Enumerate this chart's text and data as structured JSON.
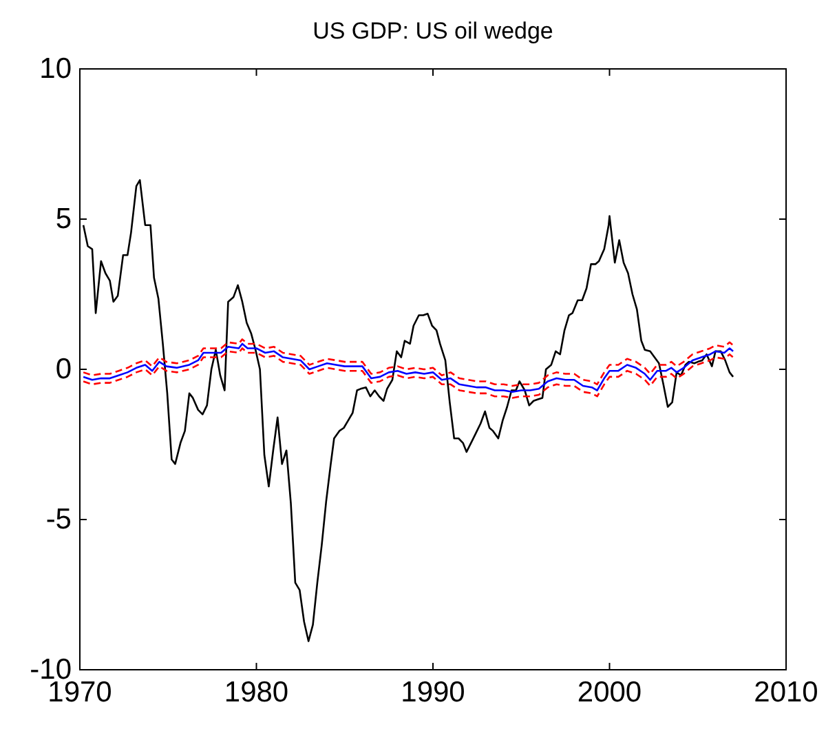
{
  "chart_data": {
    "type": "line",
    "title": "US GDP: US oil wedge",
    "xlim": [
      1970,
      2010
    ],
    "xticks": [
      1970,
      1980,
      1990,
      2000,
      2010
    ],
    "ylim": [
      -10,
      10
    ],
    "yticks": [
      -10,
      -5,
      0,
      5,
      10
    ],
    "marker": "none",
    "series": [
      {
        "color": "#000000",
        "line_style": "solid",
        "x": [
          1970.2,
          1970.45,
          1970.7,
          1970.9,
          1971.2,
          1971.45,
          1971.7,
          1971.9,
          1972.15,
          1972.45,
          1972.7,
          1972.9,
          1973.2,
          1973.4,
          1973.7,
          1974.0,
          1974.2,
          1974.45,
          1974.7,
          1974.95,
          1975.2,
          1975.4,
          1975.7,
          1975.95,
          1976.2,
          1976.4,
          1976.7,
          1976.95,
          1977.2,
          1977.45,
          1977.7,
          1977.95,
          1978.2,
          1978.4,
          1978.7,
          1978.95,
          1979.2,
          1979.45,
          1979.7,
          1979.95,
          1980.2,
          1980.45,
          1980.7,
          1980.95,
          1981.2,
          1981.45,
          1981.7,
          1981.95,
          1982.2,
          1982.45,
          1982.7,
          1982.95,
          1983.2,
          1983.45,
          1983.7,
          1983.95,
          1984.2,
          1984.4,
          1984.7,
          1984.95,
          1985.2,
          1985.45,
          1985.7,
          1985.9,
          1986.2,
          1986.45,
          1986.7,
          1986.95,
          1987.2,
          1987.4,
          1987.7,
          1987.95,
          1988.2,
          1988.4,
          1988.7,
          1988.9,
          1989.2,
          1989.45,
          1989.7,
          1989.95,
          1990.2,
          1990.4,
          1990.7,
          1990.95,
          1991.2,
          1991.45,
          1991.7,
          1991.9,
          1992.2,
          1992.45,
          1992.7,
          1992.95,
          1993.2,
          1993.4,
          1993.7,
          1993.95,
          1994.2,
          1994.45,
          1994.7,
          1994.9,
          1995.2,
          1995.45,
          1995.7,
          1995.95,
          1996.2,
          1996.4,
          1996.7,
          1996.95,
          1997.2,
          1997.45,
          1997.7,
          1997.9,
          1998.2,
          1998.45,
          1998.7,
          1998.95,
          1999.2,
          1999.4,
          1999.7,
          1999.95,
          2000.0,
          2000.3,
          2000.55,
          2000.8,
          2001.05,
          2001.3,
          2001.55,
          2001.8,
          2002.0,
          2002.3,
          2002.55,
          2002.8,
          2003.05,
          2003.3,
          2003.55,
          2003.8,
          2004.05,
          2004.3,
          2004.5,
          2004.8,
          2005.0,
          2005.25,
          2005.5,
          2005.8,
          2006.0,
          2006.3,
          2006.55,
          2006.8,
          2007.0
        ],
        "values": [
          4.8,
          4.1,
          4.0,
          1.87,
          3.6,
          3.2,
          2.95,
          2.25,
          2.45,
          3.8,
          3.8,
          4.55,
          6.1,
          6.3,
          4.8,
          4.8,
          3.05,
          2.35,
          0.85,
          -0.8,
          -3.0,
          -3.15,
          -2.45,
          -2.05,
          -0.8,
          -0.95,
          -1.35,
          -1.5,
          -1.2,
          0,
          0.65,
          -0.2,
          -0.7,
          2.25,
          2.4,
          2.8,
          2.25,
          1.55,
          1.2,
          0.65,
          0,
          -2.85,
          -3.9,
          -2.7,
          -1.6,
          -3.15,
          -2.7,
          -4.45,
          -7.1,
          -7.35,
          -8.4,
          -9.05,
          -8.5,
          -7.1,
          -5.85,
          -4.4,
          -3.2,
          -2.3,
          -2.05,
          -1.95,
          -1.7,
          -1.45,
          -0.7,
          -0.65,
          -0.6,
          -0.9,
          -0.7,
          -0.9,
          -1.05,
          -0.65,
          -0.35,
          0.6,
          0.4,
          0.95,
          0.85,
          1.45,
          1.8,
          1.8,
          1.85,
          1.45,
          1.3,
          0.85,
          0.3,
          -1.1,
          -2.3,
          -2.3,
          -2.45,
          -2.75,
          -2.4,
          -2.1,
          -1.8,
          -1.4,
          -1.95,
          -2.05,
          -2.3,
          -1.7,
          -1.25,
          -0.7,
          -0.7,
          -0.4,
          -0.7,
          -1.2,
          -1.05,
          -1.0,
          -0.95,
          0,
          0.15,
          0.6,
          0.5,
          1.3,
          1.8,
          1.87,
          2.3,
          2.3,
          2.7,
          3.5,
          3.5,
          3.6,
          4.0,
          4.8,
          5.1,
          3.55,
          4.3,
          3.55,
          3.2,
          2.5,
          2.0,
          0.95,
          0.65,
          0.6,
          0.4,
          0.2,
          -0.5,
          -1.25,
          -1.1,
          -0.1,
          -0.2,
          0.15,
          0.25,
          0.2,
          0.25,
          0.3,
          0.5,
          0.1,
          0.6,
          0.6,
          0.3,
          -0.1,
          -0.25
        ]
      },
      {
        "color": "#0000ff",
        "line_style": "solid",
        "x": [
          1970.2,
          1970.7,
          1971.2,
          1971.7,
          1972.2,
          1972.7,
          1973.2,
          1973.7,
          1974.1,
          1974.5,
          1974.9,
          1975.5,
          1976.2,
          1976.7,
          1977.0,
          1977.7,
          1978.0,
          1978.4,
          1979.0,
          1979.2,
          1979.5,
          1980.0,
          1980.5,
          1981.0,
          1981.5,
          1982.0,
          1982.5,
          1983.0,
          1983.5,
          1984.0,
          1984.5,
          1985.0,
          1985.5,
          1986.0,
          1986.5,
          1987.0,
          1987.5,
          1988.0,
          1988.5,
          1989.0,
          1989.5,
          1990.0,
          1990.5,
          1991.0,
          1991.5,
          1992.0,
          1992.5,
          1993.0,
          1993.5,
          1994.0,
          1994.5,
          1995.0,
          1995.5,
          1996.0,
          1996.5,
          1997.0,
          1997.5,
          1998.0,
          1998.5,
          1999.0,
          1999.3,
          1999.7,
          2000.0,
          2000.5,
          2001.0,
          2001.5,
          2002.0,
          2002.3,
          2002.7,
          2003.2,
          2003.5,
          2003.8,
          2004.2,
          2004.7,
          2005.2,
          2005.7,
          2006.0,
          2006.5,
          2006.8,
          2007.0
        ],
        "values": [
          -0.25,
          -0.35,
          -0.3,
          -0.3,
          -0.2,
          -0.1,
          0.05,
          0.15,
          -0.05,
          0.25,
          0.1,
          0.05,
          0.15,
          0.3,
          0.55,
          0.55,
          0.55,
          0.75,
          0.7,
          0.85,
          0.7,
          0.7,
          0.55,
          0.6,
          0.4,
          0.35,
          0.3,
          0.0,
          0.1,
          0.2,
          0.15,
          0.1,
          0.1,
          0.1,
          -0.3,
          -0.25,
          -0.1,
          -0.05,
          -0.15,
          -0.1,
          -0.15,
          -0.1,
          -0.35,
          -0.3,
          -0.5,
          -0.55,
          -0.6,
          -0.6,
          -0.7,
          -0.7,
          -0.75,
          -0.7,
          -0.7,
          -0.65,
          -0.4,
          -0.3,
          -0.35,
          -0.35,
          -0.55,
          -0.6,
          -0.7,
          -0.3,
          -0.05,
          -0.05,
          0.15,
          0.05,
          -0.15,
          -0.35,
          -0.05,
          -0.05,
          0.05,
          -0.1,
          0.05,
          0.3,
          0.4,
          0.5,
          0.6,
          0.55,
          0.7,
          0.6
        ]
      },
      {
        "color": "#ff0000",
        "line_style": "dashed",
        "x": [
          1970.2,
          1970.7,
          1971.2,
          1971.7,
          1972.2,
          1972.7,
          1973.2,
          1973.7,
          1974.1,
          1974.5,
          1974.9,
          1975.5,
          1976.2,
          1976.7,
          1977.0,
          1977.7,
          1978.0,
          1978.4,
          1979.0,
          1979.2,
          1979.5,
          1980.0,
          1980.5,
          1981.0,
          1981.5,
          1982.0,
          1982.5,
          1983.0,
          1983.5,
          1984.0,
          1984.5,
          1985.0,
          1985.5,
          1986.0,
          1986.5,
          1987.0,
          1987.5,
          1988.0,
          1988.5,
          1989.0,
          1989.5,
          1990.0,
          1990.5,
          1991.0,
          1991.5,
          1992.0,
          1992.5,
          1993.0,
          1993.5,
          1994.0,
          1994.5,
          1995.0,
          1995.5,
          1996.0,
          1996.5,
          1997.0,
          1997.5,
          1998.0,
          1998.5,
          1999.0,
          1999.3,
          1999.7,
          2000.0,
          2000.5,
          2001.0,
          2001.5,
          2002.0,
          2002.3,
          2002.7,
          2003.2,
          2003.5,
          2003.8,
          2004.2,
          2004.7,
          2005.2,
          2005.7,
          2006.0,
          2006.5,
          2006.8,
          2007.0
        ],
        "values": [
          -0.1,
          -0.2,
          -0.15,
          -0.15,
          -0.05,
          0.05,
          0.2,
          0.3,
          0.1,
          0.4,
          0.25,
          0.2,
          0.3,
          0.45,
          0.7,
          0.7,
          0.7,
          0.9,
          0.85,
          1.0,
          0.85,
          0.85,
          0.7,
          0.75,
          0.55,
          0.5,
          0.45,
          0.15,
          0.25,
          0.35,
          0.3,
          0.25,
          0.25,
          0.25,
          -0.15,
          -0.1,
          0.05,
          0.1,
          0.0,
          0.05,
          0.0,
          0.05,
          -0.2,
          -0.1,
          -0.3,
          -0.35,
          -0.4,
          -0.4,
          -0.5,
          -0.5,
          -0.55,
          -0.5,
          -0.5,
          -0.45,
          -0.2,
          -0.1,
          -0.15,
          -0.15,
          -0.35,
          -0.4,
          -0.5,
          -0.1,
          0.15,
          0.15,
          0.35,
          0.25,
          0.05,
          -0.15,
          0.15,
          0.15,
          0.25,
          0.1,
          0.25,
          0.5,
          0.6,
          0.7,
          0.8,
          0.75,
          0.9,
          0.8
        ]
      },
      {
        "color": "#ff0000",
        "line_style": "dashed",
        "x": [
          1970.2,
          1970.7,
          1971.2,
          1971.7,
          1972.2,
          1972.7,
          1973.2,
          1973.7,
          1974.1,
          1974.5,
          1974.9,
          1975.5,
          1976.2,
          1976.7,
          1977.0,
          1977.7,
          1978.0,
          1978.4,
          1979.0,
          1979.2,
          1979.5,
          1980.0,
          1980.5,
          1981.0,
          1981.5,
          1982.0,
          1982.5,
          1983.0,
          1983.5,
          1984.0,
          1984.5,
          1985.0,
          1985.5,
          1986.0,
          1986.5,
          1987.0,
          1987.5,
          1988.0,
          1988.5,
          1989.0,
          1989.5,
          1990.0,
          1990.5,
          1991.0,
          1991.5,
          1992.0,
          1992.5,
          1993.0,
          1993.5,
          1994.0,
          1994.5,
          1995.0,
          1995.5,
          1996.0,
          1996.5,
          1997.0,
          1997.5,
          1998.0,
          1998.5,
          1999.0,
          1999.3,
          1999.7,
          2000.0,
          2000.5,
          2001.0,
          2001.5,
          2002.0,
          2002.3,
          2002.7,
          2003.2,
          2003.5,
          2003.8,
          2004.2,
          2004.7,
          2005.2,
          2005.7,
          2006.0,
          2006.5,
          2006.8,
          2007.0
        ],
        "values": [
          -0.4,
          -0.5,
          -0.45,
          -0.45,
          -0.35,
          -0.25,
          -0.1,
          0.0,
          -0.2,
          0.1,
          -0.05,
          -0.1,
          0.0,
          0.15,
          0.4,
          0.4,
          0.4,
          0.6,
          0.55,
          0.7,
          0.55,
          0.55,
          0.4,
          0.45,
          0.25,
          0.2,
          0.15,
          -0.15,
          -0.05,
          0.05,
          0.0,
          -0.05,
          -0.05,
          -0.05,
          -0.45,
          -0.4,
          -0.25,
          -0.2,
          -0.3,
          -0.25,
          -0.3,
          -0.25,
          -0.5,
          -0.5,
          -0.7,
          -0.75,
          -0.8,
          -0.8,
          -0.9,
          -0.9,
          -0.95,
          -0.9,
          -0.9,
          -0.85,
          -0.6,
          -0.5,
          -0.55,
          -0.55,
          -0.75,
          -0.8,
          -0.9,
          -0.5,
          -0.25,
          -0.25,
          -0.05,
          -0.15,
          -0.35,
          -0.55,
          -0.25,
          -0.25,
          -0.15,
          -0.3,
          -0.15,
          0.1,
          0.2,
          0.3,
          0.4,
          0.35,
          0.5,
          0.4
        ]
      }
    ]
  }
}
